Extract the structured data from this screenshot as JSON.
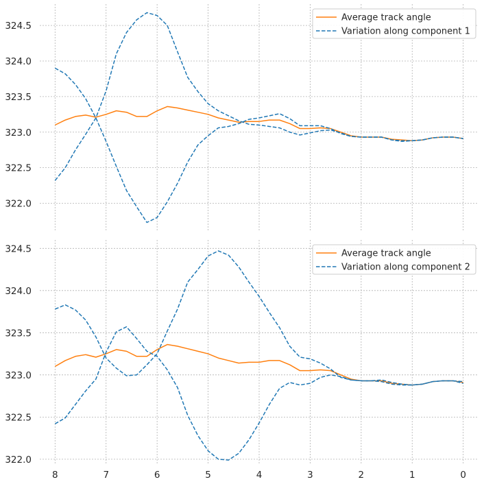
{
  "chart_data": [
    {
      "type": "line",
      "title": "",
      "xlabel": "",
      "ylabel": "",
      "x_ticks": [
        8,
        7,
        6,
        5,
        4,
        3,
        2,
        1,
        0
      ],
      "y_ticks": [
        322.0,
        322.5,
        323.0,
        323.5,
        324.0,
        324.5
      ],
      "y_tick_labels": [
        "322.0",
        "322.5",
        "323.0",
        "323.5",
        "324.0",
        "324.5"
      ],
      "xlim": [
        8.3,
        -0.3
      ],
      "ylim": [
        321.6,
        324.8
      ],
      "x_reversed": true,
      "grid": true,
      "legend_position": "top-right",
      "series": [
        {
          "name": "Average track angle",
          "color": "#ff7f0e",
          "style": "solid",
          "x": [
            8.0,
            7.8,
            7.6,
            7.4,
            7.2,
            7.0,
            6.8,
            6.6,
            6.4,
            6.2,
            6.0,
            5.8,
            5.6,
            5.4,
            5.2,
            5.0,
            4.8,
            4.6,
            4.4,
            4.2,
            4.0,
            3.8,
            3.6,
            3.4,
            3.2,
            3.0,
            2.8,
            2.6,
            2.4,
            2.2,
            2.0,
            1.8,
            1.6,
            1.4,
            1.2,
            1.0,
            0.8,
            0.6,
            0.4,
            0.2,
            0.0
          ],
          "y": [
            323.1,
            323.17,
            323.22,
            323.24,
            323.21,
            323.25,
            323.3,
            323.28,
            323.22,
            323.22,
            323.3,
            323.36,
            323.34,
            323.31,
            323.28,
            323.25,
            323.2,
            323.17,
            323.14,
            323.15,
            323.15,
            323.17,
            323.17,
            323.12,
            323.05,
            323.05,
            323.06,
            323.05,
            323.0,
            322.95,
            322.93,
            322.93,
            322.93,
            322.9,
            322.89,
            322.88,
            322.89,
            322.92,
            322.93,
            322.93,
            322.91
          ]
        },
        {
          "name": "Variation along component 1",
          "color": "#1f77b4",
          "style": "dashed",
          "x": [
            8.0,
            7.8,
            7.6,
            7.4,
            7.2,
            7.0,
            6.8,
            6.6,
            6.4,
            6.2,
            6.0,
            5.8,
            5.6,
            5.4,
            5.2,
            5.0,
            4.8,
            4.6,
            4.4,
            4.2,
            4.0,
            3.8,
            3.6,
            3.4,
            3.2,
            3.0,
            2.8,
            2.6,
            2.4,
            2.2,
            2.0,
            1.8,
            1.6,
            1.4,
            1.2,
            1.0,
            0.8,
            0.6,
            0.4,
            0.2,
            0.0
          ],
          "y": [
            323.9,
            323.82,
            323.67,
            323.47,
            323.2,
            322.87,
            322.52,
            322.18,
            321.95,
            321.73,
            321.8,
            322.02,
            322.28,
            322.58,
            322.82,
            322.95,
            323.06,
            323.08,
            323.12,
            323.18,
            323.2,
            323.23,
            323.26,
            323.19,
            323.09,
            323.09,
            323.09,
            323.05,
            322.98,
            322.94,
            322.93,
            322.93,
            322.93,
            322.89,
            322.87,
            322.88,
            322.89,
            322.92,
            322.93,
            322.93,
            322.91
          ]
        },
        {
          "name": "",
          "color": "#1f77b4",
          "style": "dashed",
          "x": [
            8.0,
            7.8,
            7.6,
            7.4,
            7.2,
            7.0,
            6.8,
            6.6,
            6.4,
            6.2,
            6.0,
            5.8,
            5.6,
            5.4,
            5.2,
            5.0,
            4.8,
            4.6,
            4.4,
            4.2,
            4.0,
            3.8,
            3.6,
            3.4,
            3.2,
            3.0,
            2.8,
            2.6,
            2.4,
            2.2,
            2.0,
            1.8,
            1.6,
            1.4,
            1.2,
            1.0,
            0.8,
            0.6,
            0.4,
            0.2,
            0.0
          ],
          "y": [
            322.32,
            322.5,
            322.75,
            322.97,
            323.2,
            323.58,
            324.1,
            324.4,
            324.58,
            324.68,
            324.64,
            324.5,
            324.13,
            323.77,
            323.57,
            323.4,
            323.3,
            323.23,
            323.16,
            323.11,
            323.1,
            323.08,
            323.06,
            323.0,
            322.96,
            322.99,
            323.02,
            323.03,
            322.99,
            322.94,
            322.93,
            322.93,
            322.93,
            322.89,
            322.88,
            322.88,
            322.89,
            322.92,
            322.93,
            322.93,
            322.91
          ]
        }
      ]
    },
    {
      "type": "line",
      "title": "",
      "xlabel": "",
      "ylabel": "",
      "x_ticks": [
        8,
        7,
        6,
        5,
        4,
        3,
        2,
        1,
        0
      ],
      "x_tick_labels": [
        "8",
        "7",
        "6",
        "5",
        "4",
        "3",
        "2",
        "1",
        "0"
      ],
      "y_ticks": [
        322.0,
        322.5,
        323.0,
        323.5,
        324.0,
        324.5
      ],
      "y_tick_labels": [
        "322.0",
        "322.5",
        "323.0",
        "323.5",
        "324.0",
        "324.5"
      ],
      "xlim": [
        8.3,
        -0.3
      ],
      "ylim": [
        321.95,
        324.6
      ],
      "x_reversed": true,
      "grid": true,
      "legend_position": "top-right",
      "series": [
        {
          "name": "Average track angle",
          "color": "#ff7f0e",
          "style": "solid",
          "x": [
            8.0,
            7.8,
            7.6,
            7.4,
            7.2,
            7.0,
            6.8,
            6.6,
            6.4,
            6.2,
            6.0,
            5.8,
            5.6,
            5.4,
            5.2,
            5.0,
            4.8,
            4.6,
            4.4,
            4.2,
            4.0,
            3.8,
            3.6,
            3.4,
            3.2,
            3.0,
            2.8,
            2.6,
            2.4,
            2.2,
            2.0,
            1.8,
            1.6,
            1.4,
            1.2,
            1.0,
            0.8,
            0.6,
            0.4,
            0.2,
            0.0
          ],
          "y": [
            323.1,
            323.17,
            323.22,
            323.24,
            323.21,
            323.25,
            323.3,
            323.28,
            323.22,
            323.22,
            323.3,
            323.36,
            323.34,
            323.31,
            323.28,
            323.25,
            323.2,
            323.17,
            323.14,
            323.15,
            323.15,
            323.17,
            323.17,
            323.12,
            323.05,
            323.05,
            323.06,
            323.05,
            323.0,
            322.95,
            322.93,
            322.93,
            322.93,
            322.9,
            322.89,
            322.88,
            322.89,
            322.92,
            322.93,
            322.93,
            322.91
          ]
        },
        {
          "name": "Variation along component 2",
          "color": "#1f77b4",
          "style": "dashed",
          "x": [
            8.0,
            7.8,
            7.6,
            7.4,
            7.2,
            7.0,
            6.8,
            6.6,
            6.4,
            6.2,
            6.0,
            5.8,
            5.6,
            5.4,
            5.2,
            5.0,
            4.8,
            4.6,
            4.4,
            4.2,
            4.0,
            3.8,
            3.6,
            3.4,
            3.2,
            3.0,
            2.8,
            2.6,
            2.4,
            2.2,
            2.0,
            1.8,
            1.6,
            1.4,
            1.2,
            1.0,
            0.8,
            0.6,
            0.4,
            0.2,
            0.0
          ],
          "y": [
            323.78,
            323.83,
            323.77,
            323.65,
            323.45,
            323.2,
            323.08,
            322.99,
            323.0,
            323.12,
            323.25,
            323.52,
            323.78,
            324.1,
            324.25,
            324.41,
            324.47,
            324.42,
            324.28,
            324.1,
            323.93,
            323.74,
            323.56,
            323.34,
            323.21,
            323.19,
            323.14,
            323.07,
            322.97,
            322.94,
            322.93,
            322.93,
            322.94,
            322.91,
            322.89,
            322.88,
            322.89,
            322.92,
            322.93,
            322.93,
            322.92
          ]
        },
        {
          "name": "",
          "color": "#1f77b4",
          "style": "dashed",
          "x": [
            8.0,
            7.8,
            7.6,
            7.4,
            7.2,
            7.0,
            6.8,
            6.6,
            6.4,
            6.2,
            6.0,
            5.8,
            5.6,
            5.4,
            5.2,
            5.0,
            4.8,
            4.6,
            4.4,
            4.2,
            4.0,
            3.8,
            3.6,
            3.4,
            3.2,
            3.0,
            2.8,
            2.6,
            2.4,
            2.2,
            2.0,
            1.8,
            1.6,
            1.4,
            1.2,
            1.0,
            0.8,
            0.6,
            0.4,
            0.2,
            0.0
          ],
          "y": [
            322.42,
            322.49,
            322.65,
            322.81,
            322.95,
            323.27,
            323.51,
            323.57,
            323.43,
            323.28,
            323.22,
            323.06,
            322.85,
            322.52,
            322.28,
            322.1,
            322.0,
            321.99,
            322.07,
            322.23,
            322.43,
            322.65,
            322.84,
            322.91,
            322.88,
            322.9,
            322.97,
            323.0,
            322.98,
            322.94,
            322.93,
            322.93,
            322.92,
            322.89,
            322.88,
            322.88,
            322.89,
            322.92,
            322.93,
            322.93,
            322.9
          ]
        }
      ]
    }
  ]
}
